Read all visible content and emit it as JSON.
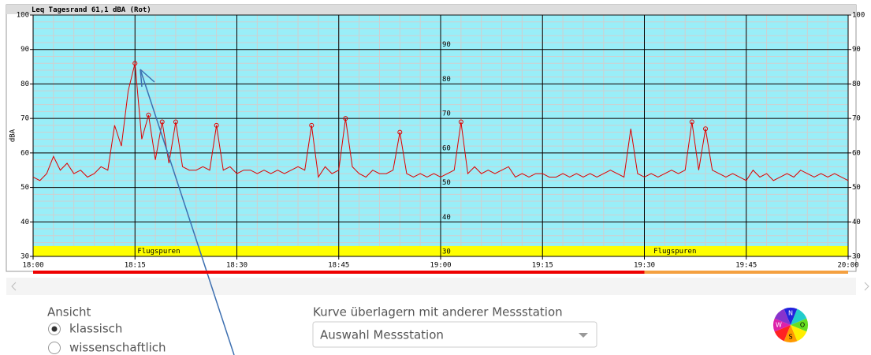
{
  "chart_data": {
    "type": "line",
    "title": "Leq Tagesrand 61,1 dBA (Rot)",
    "y_label": "dBA",
    "color": "#dd0000",
    "background": "#99eef8",
    "grid": true,
    "minor_grid": {
      "x_step": 3,
      "y_step": 2
    },
    "xlim": [
      0,
      120
    ],
    "xticks": [
      {
        "value": 0,
        "label": "18:00"
      },
      {
        "value": 15,
        "label": "18:15"
      },
      {
        "value": 30,
        "label": "18:30"
      },
      {
        "value": 45,
        "label": "18:45"
      },
      {
        "value": 60,
        "label": "19:00"
      },
      {
        "value": 75,
        "label": "19:15"
      },
      {
        "value": 90,
        "label": "19:30"
      },
      {
        "value": 105,
        "label": "19:45"
      },
      {
        "value": 120,
        "label": "20:00"
      }
    ],
    "ylim": [
      30,
      100
    ],
    "yticks": [
      30,
      40,
      50,
      60,
      70,
      80,
      90,
      100
    ],
    "mid_yticks": [
      30,
      40,
      50,
      60,
      70,
      80,
      90
    ],
    "x": [
      0,
      1,
      2,
      3,
      4,
      5,
      6,
      7,
      8,
      9,
      10,
      11,
      12,
      13,
      14,
      15,
      16,
      17,
      18,
      19,
      20,
      21,
      22,
      23,
      24,
      25,
      26,
      27,
      28,
      29,
      30,
      31,
      32,
      33,
      34,
      35,
      36,
      37,
      38,
      39,
      40,
      41,
      42,
      43,
      44,
      45,
      46,
      47,
      48,
      49,
      50,
      51,
      52,
      53,
      54,
      55,
      56,
      57,
      58,
      59,
      60,
      61,
      62,
      63,
      64,
      65,
      66,
      67,
      68,
      69,
      70,
      71,
      72,
      73,
      74,
      75,
      76,
      77,
      78,
      79,
      80,
      81,
      82,
      83,
      84,
      85,
      86,
      87,
      88,
      89,
      90,
      91,
      92,
      93,
      94,
      95,
      96,
      97,
      98,
      99,
      100,
      101,
      102,
      103,
      104,
      105,
      106,
      107,
      108,
      109,
      110,
      111,
      112,
      113,
      114,
      115,
      116,
      117,
      118,
      119,
      120
    ],
    "values": [
      53,
      52,
      54,
      59,
      55,
      57,
      54,
      55,
      53,
      54,
      56,
      55,
      68,
      62,
      78,
      86,
      64,
      71,
      58,
      69,
      57,
      69,
      56,
      55,
      55,
      56,
      55,
      68,
      55,
      56,
      54,
      55,
      55,
      54,
      55,
      54,
      55,
      54,
      55,
      56,
      55,
      68,
      53,
      56,
      54,
      55,
      70,
      56,
      54,
      53,
      55,
      54,
      54,
      55,
      66,
      54,
      53,
      54,
      53,
      54,
      53,
      54,
      55,
      69,
      54,
      56,
      54,
      55,
      54,
      55,
      56,
      53,
      54,
      53,
      54,
      54,
      53,
      53,
      54,
      53,
      54,
      53,
      54,
      53,
      54,
      55,
      54,
      53,
      67,
      54,
      53,
      54,
      53,
      54,
      55,
      54,
      55,
      69,
      55,
      67,
      55,
      54,
      53,
      54,
      53,
      52,
      55,
      53,
      54,
      52,
      53,
      54,
      53,
      55,
      54,
      53,
      54,
      53,
      54,
      53,
      52
    ],
    "peaks": {
      "x": [
        15,
        17,
        19,
        21,
        27,
        41,
        46,
        54,
        63,
        97,
        99
      ],
      "values": [
        86,
        71,
        69,
        69,
        68,
        68,
        70,
        66,
        69,
        69,
        67
      ]
    },
    "flight_tracks": {
      "color": "#ffff00",
      "labels": [
        {
          "label": "Flugspuren",
          "x": 18.5
        },
        {
          "label": "Flugspuren",
          "x": 94.5
        }
      ]
    },
    "coverage": [
      {
        "from": 0,
        "to": 90,
        "color": "#ee0000"
      },
      {
        "from": 90,
        "to": 120,
        "color": "#f4a040"
      }
    ]
  },
  "controls": {
    "view_label": "Ansicht",
    "view_options": [
      "klassisch",
      "wissenschaftlich"
    ],
    "selected": 0,
    "overlay_label": "Kurve überlagern mit anderer Messstation",
    "station_placeholder": "Auswahl Messstation",
    "compass": {
      "north": "N",
      "east": "O",
      "south": "S",
      "west": "W"
    }
  }
}
